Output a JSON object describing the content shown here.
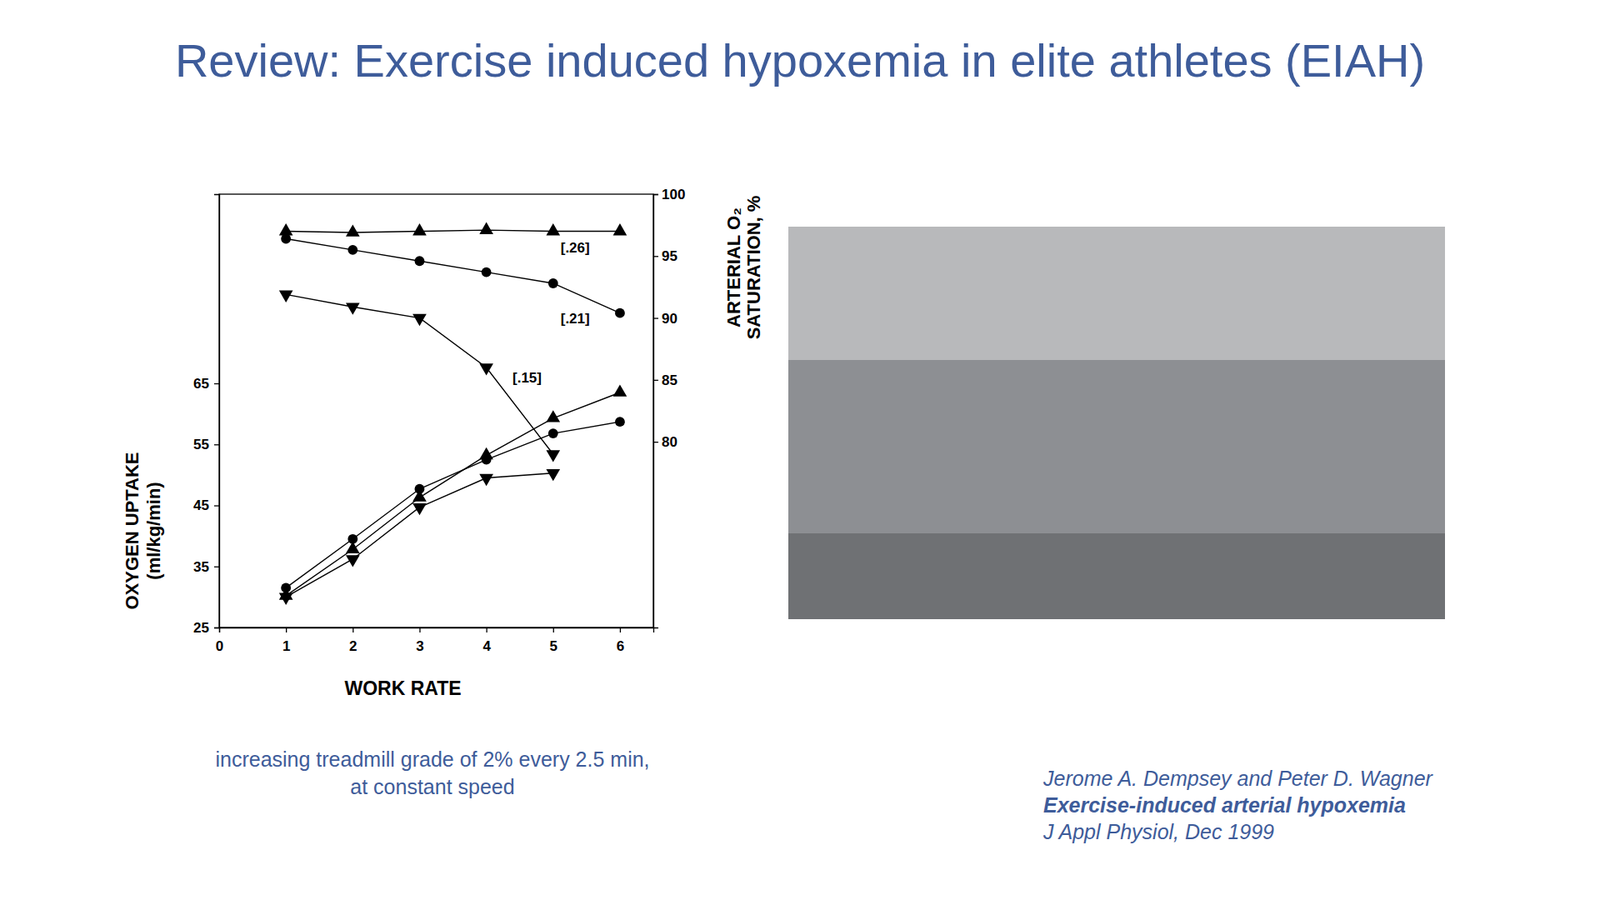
{
  "slide": {
    "title": "Review:  Exercise induced hypoxemia in elite athletes (EIAH)",
    "caption": [
      "increasing treadmill grade of 2% every 2.5 min,",
      "at constant speed"
    ],
    "citation": {
      "authors": "Jerome A. Dempsey and Peter D. Wagner",
      "title": "Exercise-induced arterial hypoxemia",
      "journal": "J Appl Physiol, Dec 1999"
    }
  },
  "chart_data": {
    "type": "line",
    "xlabel": "WORK RATE",
    "ylabel": [
      "OXYGEN UPTAKE",
      "(ml/kg/min)"
    ],
    "y2label": [
      "ARTERIAL O₂",
      "SATURATION, %"
    ],
    "x": [
      1,
      2,
      3,
      4,
      5,
      6
    ],
    "xlim": [
      0,
      6.5
    ],
    "xticks": [
      0,
      1,
      2,
      3,
      4,
      5,
      6
    ],
    "ylim": [
      25,
      96
    ],
    "yticks": [
      25,
      35,
      45,
      55,
      65
    ],
    "y2lim": [
      65,
      100
    ],
    "y2ticks": [
      80,
      85,
      90,
      95,
      100
    ],
    "grid": false,
    "series": [
      {
        "color": "#000000",
        "marker": "triangle-up",
        "line_style": "solid",
        "axis": "y",
        "values": [
          30.2,
          37.8,
          46.3,
          53.2,
          59.3,
          63.5
        ]
      },
      {
        "color": "#000000",
        "marker": "circle",
        "line_style": "solid",
        "axis": "y",
        "values": [
          31.5,
          39.5,
          47.7,
          52.5,
          56.8,
          58.7
        ]
      },
      {
        "color": "#000000",
        "marker": "triangle-down",
        "line_style": "solid",
        "axis": "y",
        "values": [
          30.0,
          36.2,
          44.7,
          49.5,
          50.3,
          null
        ]
      },
      {
        "color": "#000000",
        "marker": "triangle-up",
        "line_style": "solid",
        "axis": "y2",
        "values": [
          97.0,
          96.9,
          97.0,
          97.1,
          97.0,
          97.0
        ]
      },
      {
        "color": "#000000",
        "marker": "circle",
        "line_style": "solid",
        "axis": "y2",
        "values": [
          96.4,
          95.5,
          94.6,
          93.7,
          92.8,
          90.4
        ]
      },
      {
        "color": "#000000",
        "marker": "triangle-down",
        "line_style": "solid",
        "axis": "y2",
        "values": [
          91.9,
          90.9,
          90.0,
          86.0,
          79.0,
          null
        ]
      }
    ],
    "annotations": [
      {
        "text": "[.26]",
        "x": 5.33,
        "y": 95.6,
        "axis": "y2"
      },
      {
        "text": "[.21]",
        "x": 5.33,
        "y": 89.9,
        "axis": "y2"
      },
      {
        "text": "[.15]",
        "x": 4.61,
        "y": 85.1,
        "axis": "y2"
      }
    ]
  }
}
